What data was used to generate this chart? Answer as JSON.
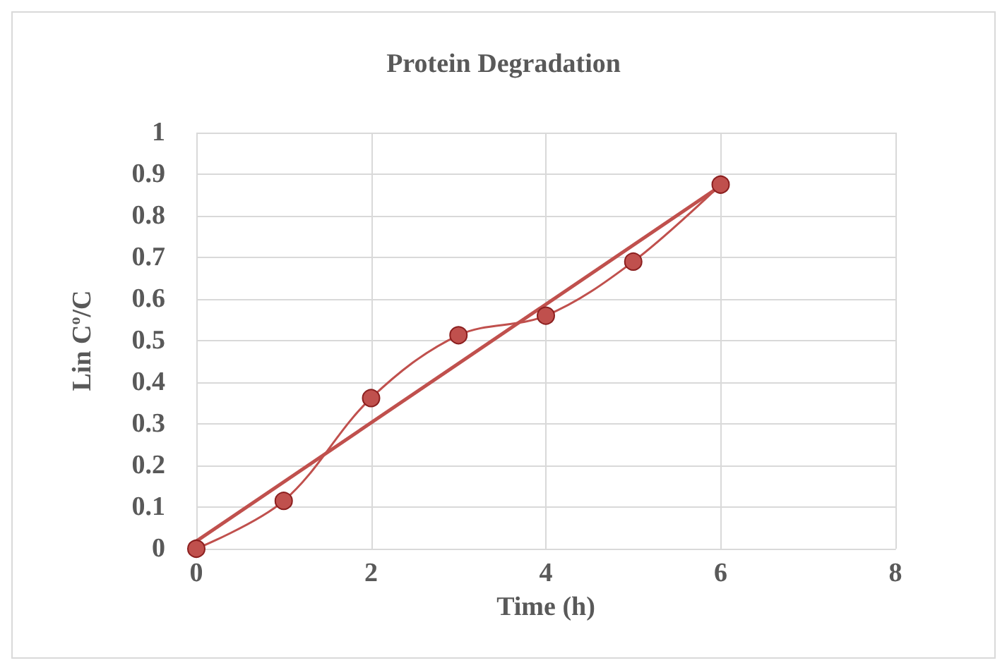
{
  "chart_data": {
    "type": "line",
    "title": "Protein Degradation",
    "xlabel": "Time (h)",
    "ylabel": "Lin C$^{o}$/C",
    "x": [
      0,
      1,
      2,
      3,
      4,
      5,
      6
    ],
    "series": [
      {
        "color": "#c0504d",
        "values": [
          0,
          0.115,
          0.362,
          0.513,
          0.56,
          0.69,
          0.875
        ]
      },
      {
        "color": "#c0504d",
        "x": [
          0,
          6
        ],
        "values": [
          0.018,
          0.872
        ],
        "marker": "none"
      }
    ],
    "xlim": [
      0,
      8
    ],
    "xticks": [
      0,
      2,
      4,
      6,
      8
    ],
    "ylim": [
      0,
      1
    ],
    "yticks": [
      0,
      0.1,
      0.2,
      0.3,
      0.4,
      0.5,
      0.6,
      0.7,
      0.8,
      0.9,
      1
    ],
    "grid": true,
    "marker": "circle",
    "line_style": "solid"
  }
}
